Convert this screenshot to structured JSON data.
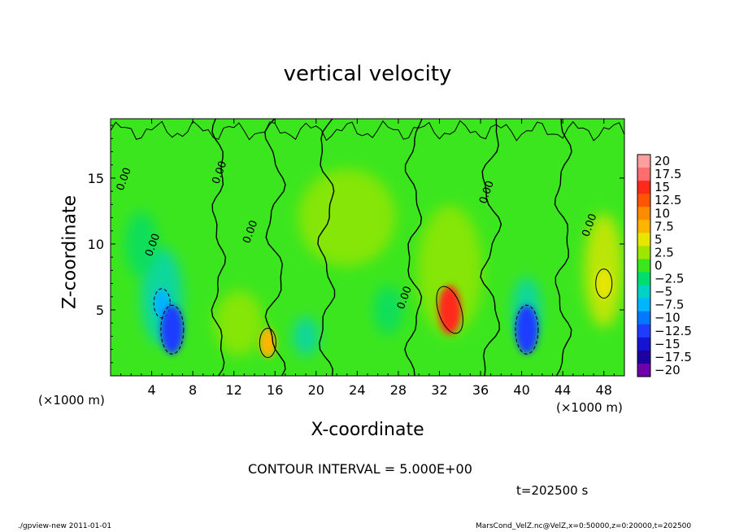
{
  "chart_data": {
    "type": "heatmap",
    "title": "vertical velocity",
    "xlabel": "X-coordinate",
    "ylabel": "Z-coordinate",
    "x_unit_label": "(×1000 m)",
    "y_unit_label": "(×1000 m)",
    "xlim": [
      0,
      50
    ],
    "ylim": [
      0,
      19.5
    ],
    "x_ticks": [
      4,
      8,
      12,
      16,
      20,
      24,
      28,
      32,
      36,
      40,
      44,
      48
    ],
    "y_ticks": [
      5,
      10,
      15
    ],
    "colorbar": {
      "labels": [
        "20",
        "17.5",
        "15",
        "12.5",
        "10",
        "7.5",
        "5",
        "2.5",
        "0",
        "−2.5",
        "−5",
        "−7.5",
        "−10",
        "−12.5",
        "−15",
        "−17.5",
        "−20"
      ],
      "colors": [
        "#ff9e9e",
        "#ff6e6e",
        "#ff2a1a",
        "#ff5500",
        "#ff8c00",
        "#ffb400",
        "#e6e600",
        "#9ee600",
        "#3ce61e",
        "#00dc6e",
        "#00d2c8",
        "#00b4ff",
        "#0078ff",
        "#1e3cff",
        "#1414d2",
        "#1e00a0",
        "#6e00aa"
      ]
    },
    "contour_labels": [
      "0.00",
      "0.00",
      "0.00",
      "0.00",
      "0.00",
      "0.00",
      "0.00"
    ],
    "features": [
      {
        "x": 5,
        "z": 5.5,
        "value": -7.5
      },
      {
        "x": 6,
        "z": 3.5,
        "value": -12
      },
      {
        "x": 15.3,
        "z": 2.5,
        "value": 7.5
      },
      {
        "x": 33,
        "z": 5,
        "value": 15
      },
      {
        "x": 40.5,
        "z": 3.5,
        "value": -12
      },
      {
        "x": 48,
        "z": 7,
        "value": 5
      }
    ],
    "contour_interval_text": "CONTOUR INTERVAL = 5.000E+00",
    "time_text": "t=202500 s"
  },
  "footer": {
    "left": "./gpview-new   2011-01-01",
    "right": "MarsCond_VelZ.nc@VelZ,x=0:50000,z=0:20000,t=202500"
  }
}
